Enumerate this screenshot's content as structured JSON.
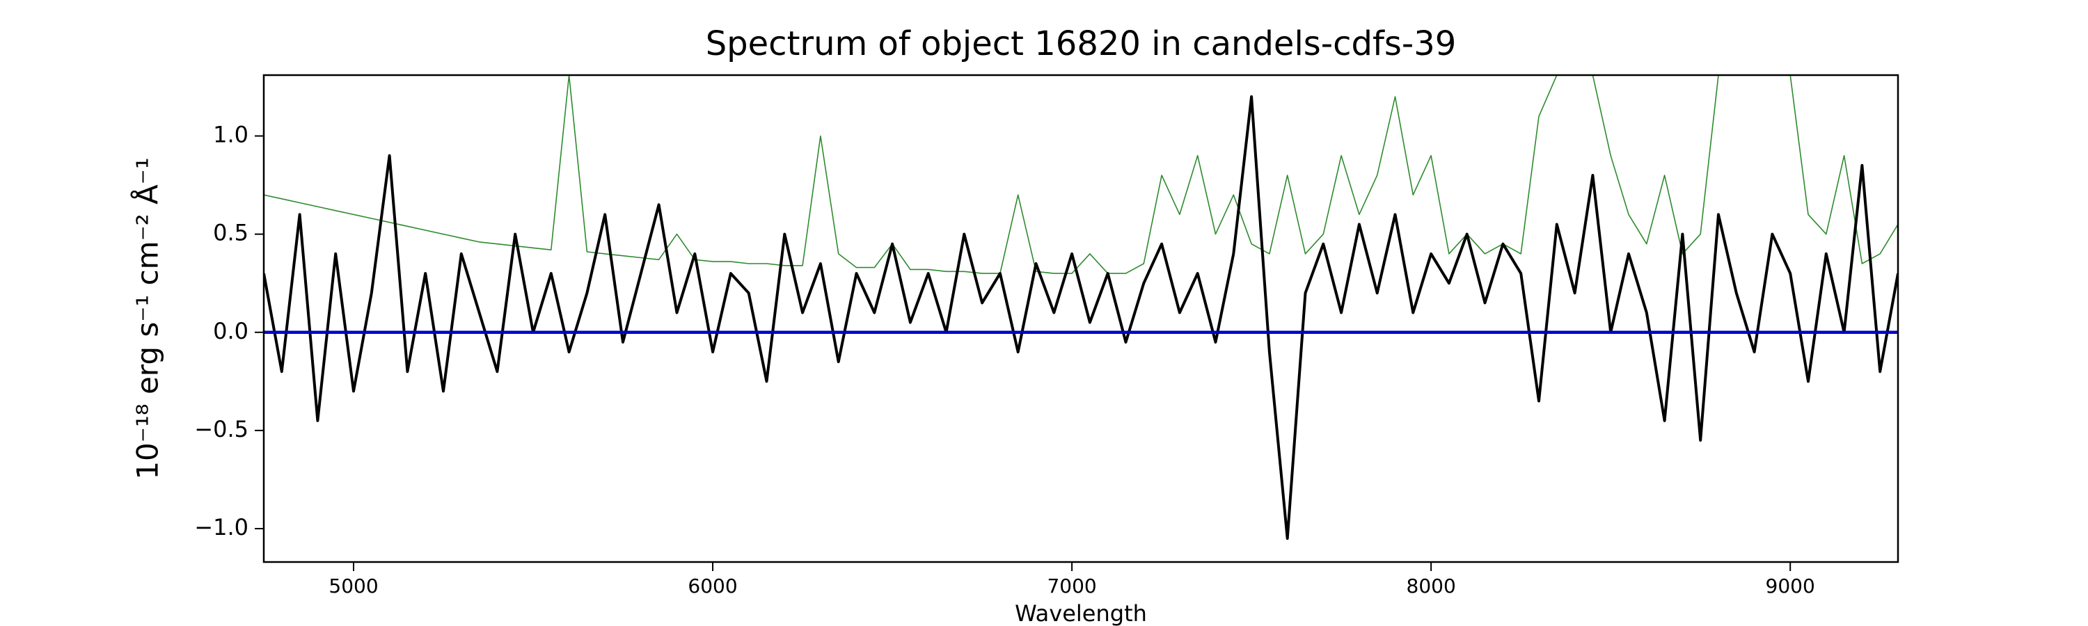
{
  "chart_data": {
    "type": "line",
    "title": "Spectrum of object 16820 in candels-cdfs-39",
    "xlabel": "Wavelength",
    "ylabel": "10⁻¹⁸ erg s⁻¹ cm⁻² Å⁻¹",
    "xlim": [
      4750,
      9300
    ],
    "ylim": [
      -1.17,
      1.31
    ],
    "xticks": [
      5000,
      6000,
      7000,
      8000,
      9000
    ],
    "yticks": [
      {
        "value": -1.0,
        "label": "−1.0"
      },
      {
        "value": -0.5,
        "label": "−0.5"
      },
      {
        "value": 0.0,
        "label": "0.0"
      },
      {
        "value": 0.5,
        "label": "0.5"
      },
      {
        "value": 1.0,
        "label": "1.0"
      }
    ],
    "x": [
      4750,
      4800,
      4850,
      4900,
      4950,
      5000,
      5050,
      5100,
      5150,
      5200,
      5250,
      5300,
      5350,
      5400,
      5450,
      5500,
      5550,
      5600,
      5650,
      5700,
      5750,
      5800,
      5850,
      5900,
      5950,
      6000,
      6050,
      6100,
      6150,
      6200,
      6250,
      6300,
      6350,
      6400,
      6450,
      6500,
      6550,
      6600,
      6650,
      6700,
      6750,
      6800,
      6850,
      6900,
      6950,
      7000,
      7050,
      7100,
      7150,
      7200,
      7250,
      7300,
      7350,
      7400,
      7450,
      7500,
      7550,
      7600,
      7650,
      7700,
      7750,
      7800,
      7850,
      7900,
      7950,
      8000,
      8050,
      8100,
      8150,
      8200,
      8250,
      8300,
      8350,
      8400,
      8450,
      8500,
      8550,
      8600,
      8650,
      8700,
      8750,
      8800,
      8850,
      8900,
      8950,
      9000,
      9050,
      9100,
      9150,
      9200,
      9250,
      9300
    ],
    "series": [
      {
        "color": "#2e8b2e",
        "width": 1.6,
        "values": [
          0.7,
          0.68,
          0.66,
          0.64,
          0.62,
          0.6,
          0.58,
          0.56,
          0.54,
          0.52,
          0.5,
          0.48,
          0.46,
          0.45,
          0.44,
          0.43,
          0.42,
          1.31,
          0.41,
          0.4,
          0.39,
          0.38,
          0.37,
          0.5,
          0.37,
          0.36,
          0.36,
          0.35,
          0.35,
          0.34,
          0.34,
          1.0,
          0.4,
          0.33,
          0.33,
          0.45,
          0.32,
          0.32,
          0.31,
          0.31,
          0.3,
          0.3,
          0.7,
          0.31,
          0.3,
          0.3,
          0.4,
          0.3,
          0.3,
          0.35,
          0.8,
          0.6,
          0.9,
          0.5,
          0.7,
          0.45,
          0.4,
          0.8,
          0.4,
          0.5,
          0.9,
          0.6,
          0.8,
          1.2,
          0.7,
          0.9,
          0.4,
          0.5,
          0.4,
          0.45,
          0.4,
          1.1,
          1.31,
          1.31,
          1.31,
          0.9,
          0.6,
          0.45,
          0.8,
          0.4,
          0.5,
          1.31,
          1.31,
          1.31,
          1.31,
          1.31,
          0.6,
          0.5,
          0.9,
          0.35,
          0.4,
          0.55
        ]
      },
      {
        "color": "#000000",
        "width": 4,
        "values": [
          0.3,
          -0.2,
          0.6,
          -0.45,
          0.4,
          -0.3,
          0.2,
          0.9,
          -0.2,
          0.3,
          -0.3,
          0.4,
          0.1,
          -0.2,
          0.5,
          0.0,
          0.3,
          -0.1,
          0.2,
          0.6,
          -0.05,
          0.3,
          0.65,
          0.1,
          0.4,
          -0.1,
          0.3,
          0.2,
          -0.25,
          0.5,
          0.1,
          0.35,
          -0.15,
          0.3,
          0.1,
          0.45,
          0.05,
          0.3,
          0.0,
          0.5,
          0.15,
          0.3,
          -0.1,
          0.35,
          0.1,
          0.4,
          0.05,
          0.3,
          -0.05,
          0.25,
          0.45,
          0.1,
          0.3,
          -0.05,
          0.4,
          1.2,
          -0.1,
          -1.05,
          0.2,
          0.45,
          0.1,
          0.55,
          0.2,
          0.6,
          0.1,
          0.4,
          0.25,
          0.5,
          0.15,
          0.45,
          0.3,
          -0.35,
          0.55,
          0.2,
          0.8,
          0.0,
          0.4,
          0.1,
          -0.45,
          0.5,
          -0.55,
          0.6,
          0.2,
          -0.1,
          0.5,
          0.3,
          -0.25,
          0.4,
          0.0,
          0.85,
          -0.2,
          0.3
        ]
      },
      {
        "color": "#0000cc",
        "width": 4.5,
        "values": [
          0,
          0,
          0,
          0,
          0,
          0,
          0,
          0,
          0,
          0,
          0,
          0,
          0,
          0,
          0,
          0,
          0,
          0,
          0,
          0,
          0,
          0,
          0,
          0,
          0,
          0,
          0,
          0,
          0,
          0,
          0,
          0,
          0,
          0,
          0,
          0,
          0,
          0,
          0,
          0,
          0,
          0,
          0,
          0,
          0,
          0,
          0,
          0,
          0,
          0,
          0,
          0,
          0,
          0,
          0,
          0,
          0,
          0,
          0,
          0,
          0,
          0,
          0,
          0,
          0,
          0,
          0,
          0,
          0,
          0,
          0,
          0,
          0,
          0,
          0,
          0,
          0,
          0,
          0,
          0,
          0,
          0,
          0,
          0,
          0,
          0,
          0,
          0,
          0,
          0,
          0,
          0
        ]
      }
    ]
  }
}
